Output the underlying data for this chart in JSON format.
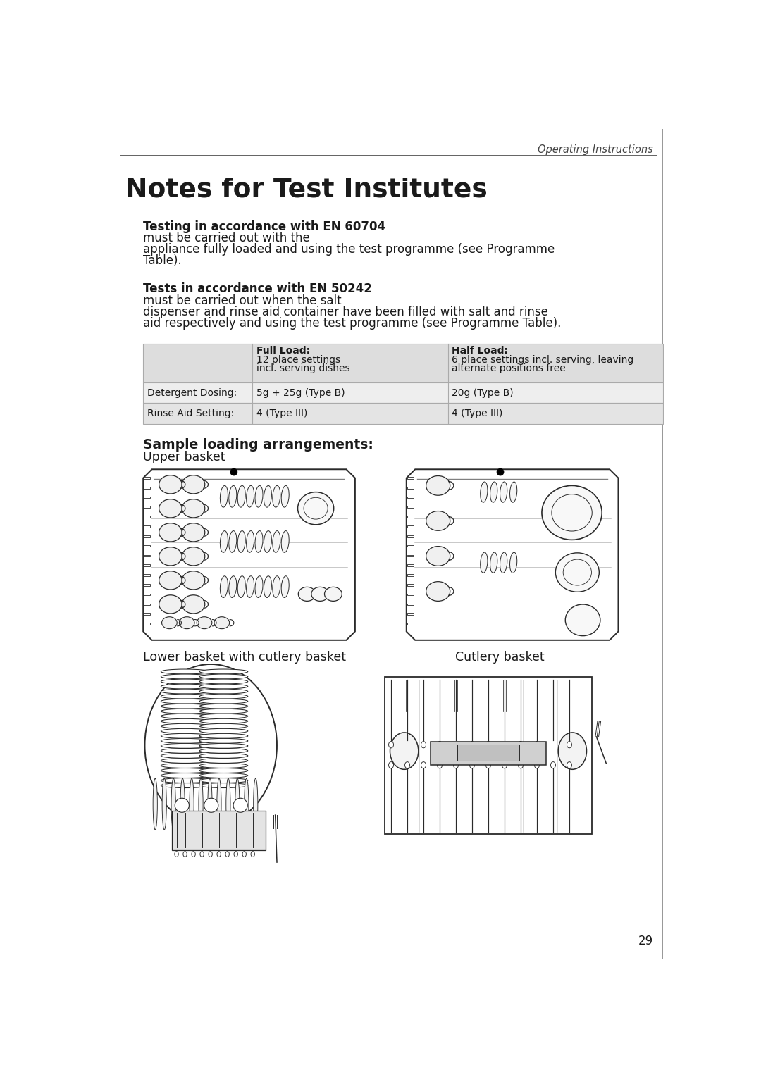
{
  "page_background": "#ffffff",
  "header_text": "Operating Instructions",
  "title": "Notes for Test Institutes",
  "para1_bold_part": "Testing in accordance with EN 60704",
  "para1_lines": [
    "must be carried out with the",
    "appliance fully loaded and using the test programme (see Programme",
    "Table)."
  ],
  "para2_bold_part": "Tests in accordance with EN 50242",
  "para2_lines": [
    "must be carried out when the salt",
    "dispenser and rinse aid container have been filled with salt and rinse",
    "aid respectively and using the test programme (see Programme Table)."
  ],
  "table_header_bg": "#dddddd",
  "table_alt_bg": "#eeeeee",
  "table_row2_bg": "#e4e4e4",
  "col1_bold": "Full Load:",
  "col1_lines": [
    "12 place settings",
    "incl. serving dishes"
  ],
  "col2_bold": "Half Load:",
  "col2_lines": [
    "6 place settings incl. serving, leaving",
    "alternate positions free"
  ],
  "row1_col0": "Detergent Dosing:",
  "row1_col1": "5g + 25g (Type B)",
  "row1_col2": "20g (Type B)",
  "row2_col0": "Rinse Aid Setting:",
  "row2_col1": "4 (Type III)",
  "row2_col2": "4 (Type III)",
  "section_bold": "Sample loading arrangements:",
  "section_normal": "Upper basket",
  "lower_label": "Lower basket with cutlery basket",
  "cutlery_label": "Cutlery basket",
  "page_number": "29",
  "text_color": "#1a1a1a",
  "drawing_color": "#2a2a2a"
}
